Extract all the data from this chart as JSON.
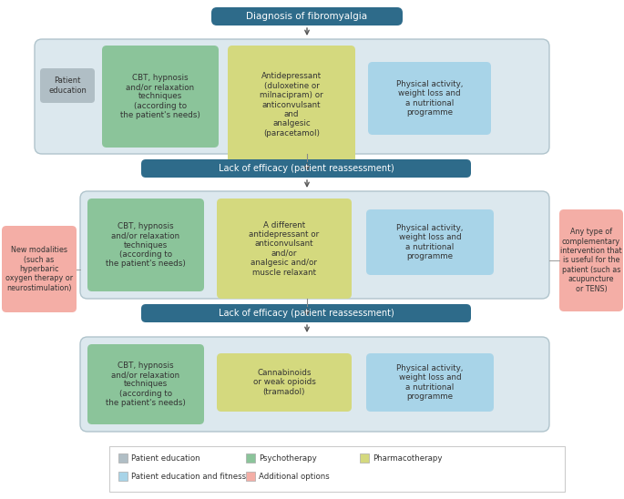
{
  "title": "Diagnosis of fibromyalgia",
  "title_bg": "#2e6b8a",
  "title_text_color": "white",
  "lack_efficacy_text": "Lack of efficacy (patient reassessment)",
  "lack_efficacy_bg": "#2e6b8a",
  "outer_box_bg": "#dce8ee",
  "outer_box_edge": "#b0c4cc",
  "patient_edu_bg": "#b0bec5",
  "patient_edu_text": "Patient\neducation",
  "new_modalities_text": "New modalities\n(such as\nhyperbaric\noxygen therapy or\nneurostimulation)",
  "new_modalities_bg": "#f4aea6",
  "complementary_text": "Any type of\ncomplementary\nintervention that\nis useful for the\npatient (such as\nacupuncture\nor TENS)",
  "complementary_bg": "#f4aea6",
  "green": "#8bc49a",
  "yellow": "#d4d97e",
  "blue": "#a8d4e8",
  "row1_boxes": [
    {
      "text": "CBT, hypnosis\nand/or relaxation\ntechniques\n(according to\nthe patient's needs)",
      "color": "#8bc49a"
    },
    {
      "text": "Antidepressant\n(duloxetine or\nmilnacipram) or\nanticonvulsant\nand\nanalgesic\n(paracetamol)",
      "color": "#d4d97e"
    },
    {
      "text": "Physical activity,\nweight loss and\na nutritional\nprogramme",
      "color": "#a8d4e8"
    }
  ],
  "row2_boxes": [
    {
      "text": "CBT, hypnosis\nand/or relaxation\ntechniques\n(according to\nthe patient's needs)",
      "color": "#8bc49a"
    },
    {
      "text": "A different\nantidepressant or\nanticonvulsant\nand/or\nanalgesic and/or\nmuscle relaxant",
      "color": "#d4d97e"
    },
    {
      "text": "Physical activity,\nweight loss and\na nutritional\nprogramme",
      "color": "#a8d4e8"
    }
  ],
  "row3_boxes": [
    {
      "text": "CBT, hypnosis\nand/or relaxation\ntechniques\n(according to\nthe patient's needs)",
      "color": "#8bc49a"
    },
    {
      "text": "Cannabinoids\nor weak opioids\n(tramadol)",
      "color": "#d4d97e"
    },
    {
      "text": "Physical activity,\nweight loss and\na nutritional\nprogramme",
      "color": "#a8d4e8"
    }
  ],
  "legend_items": [
    {
      "label": "Patient education",
      "color": "#b0bec5"
    },
    {
      "label": "Psychotherapy",
      "color": "#8bc49a"
    },
    {
      "label": "Pharmacotherapy",
      "color": "#d4d97e"
    },
    {
      "label": "Patient education and fitness",
      "color": "#a8d4e8"
    },
    {
      "label": "Additional options",
      "color": "#f4aea6"
    }
  ]
}
